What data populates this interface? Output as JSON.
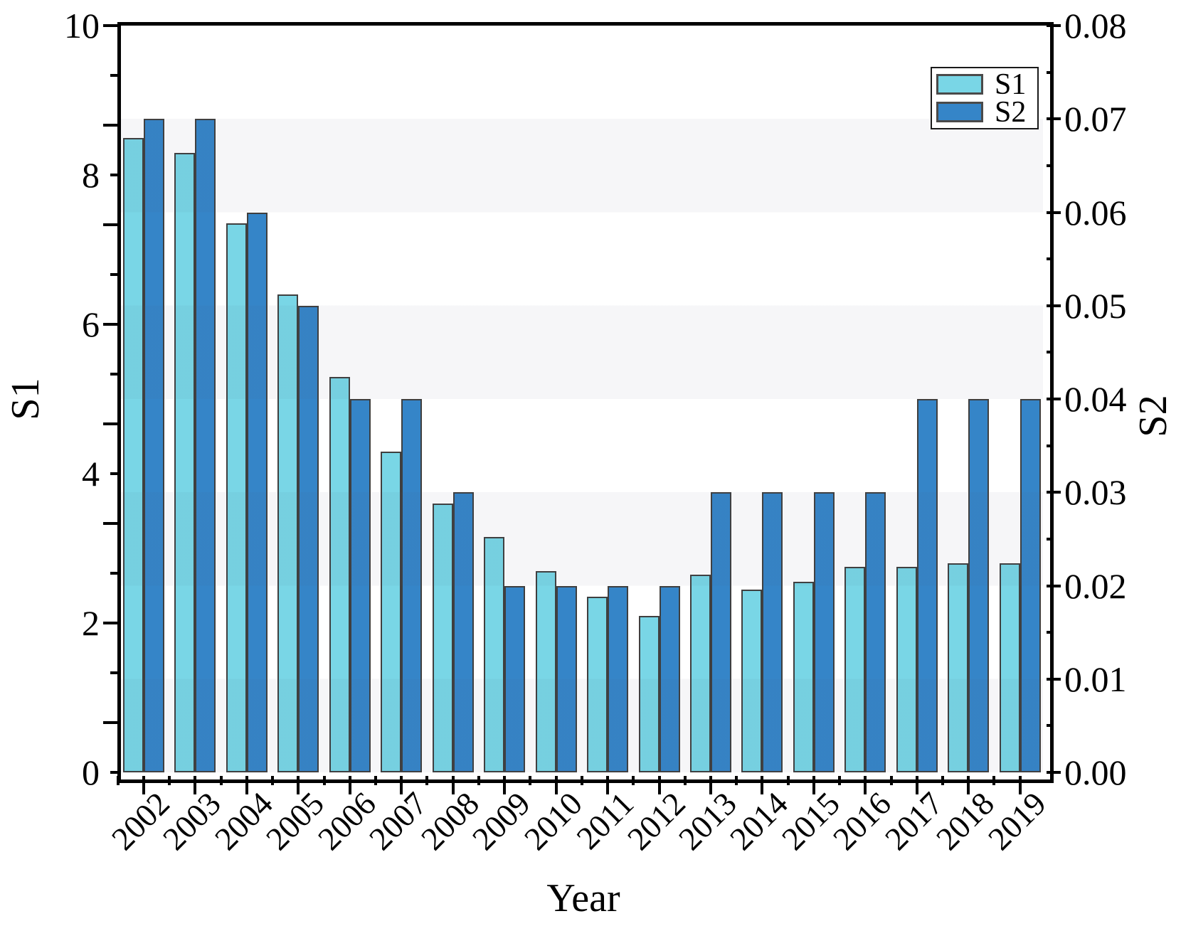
{
  "chart_data": {
    "type": "bar",
    "title": "",
    "categories": [
      "2002",
      "2003",
      "2004",
      "2005",
      "2006",
      "2007",
      "2008",
      "2009",
      "2010",
      "2011",
      "2012",
      "2013",
      "2014",
      "2015",
      "2016",
      "2017",
      "2018",
      "2019"
    ],
    "series": [
      {
        "name": "S1",
        "axis": "left",
        "color": "#79D6E6",
        "values": [
          8.5,
          8.3,
          7.35,
          6.4,
          5.3,
          4.3,
          3.6,
          3.15,
          2.7,
          2.35,
          2.1,
          2.65,
          2.45,
          2.55,
          2.75,
          2.75,
          2.8,
          2.8
        ]
      },
      {
        "name": "S2",
        "axis": "right",
        "color": "#3585C8",
        "values": [
          0.07,
          0.07,
          0.06,
          0.05,
          0.04,
          0.04,
          0.03,
          0.02,
          0.02,
          0.02,
          0.02,
          0.03,
          0.03,
          0.03,
          0.03,
          0.04,
          0.04,
          0.04
        ]
      }
    ],
    "left_axis": {
      "title": "S1",
      "min": 0,
      "max": 10,
      "tick_labels": [
        "10",
        "8",
        "6",
        "4",
        "2",
        "0"
      ],
      "minor_interval": 0.6667
    },
    "right_axis": {
      "title": "S2",
      "min": 0,
      "max": 0.08,
      "tick_labels": [
        "0.08",
        "0.07",
        "0.06",
        "0.05",
        "0.04",
        "0.03",
        "0.02",
        "0.01",
        "0.00"
      ],
      "minor_interval": 0.005
    },
    "x_axis": {
      "title": "Year"
    },
    "legend": {
      "position": "top-right",
      "entries": [
        "S1",
        "S2"
      ]
    },
    "grid": "faint horizontal bands",
    "bar_edge_color": "#3F3F3F"
  },
  "colors": {
    "s1_fill": "#79D6E6",
    "s2_fill": "#3585C8",
    "bar_edge": "#3F3F3F",
    "axis": "#000000",
    "background": "#FFFFFF"
  },
  "titles": {
    "x_title": "Year",
    "left_y_title": "S1",
    "right_y_title": "S2"
  },
  "legend": {
    "item1": "S1",
    "item2": "S2"
  }
}
